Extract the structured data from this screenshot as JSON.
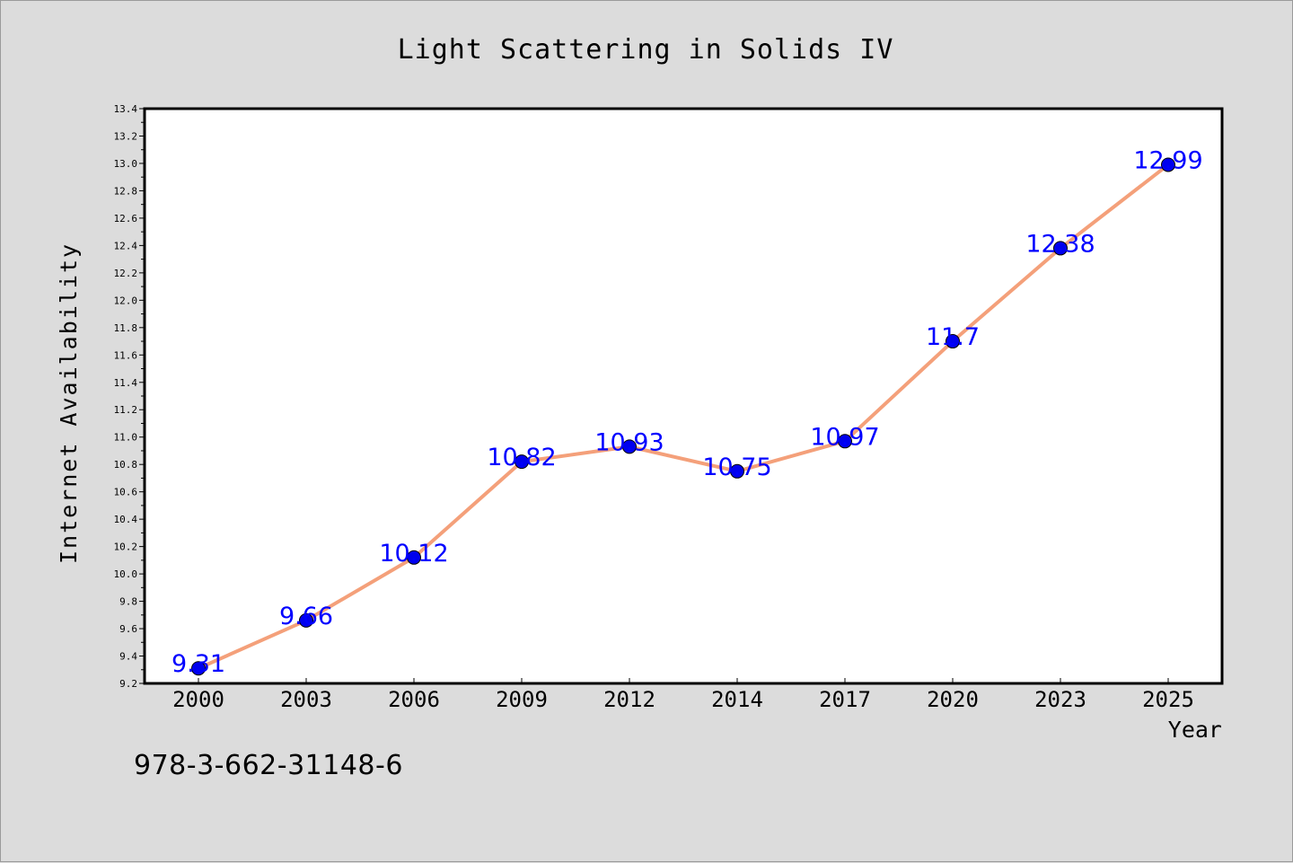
{
  "chart_data": {
    "type": "line",
    "title": "Light Scattering in Solids IV",
    "xlabel": "Year",
    "ylabel": "Internet Availability",
    "categories": [
      "2000",
      "2003",
      "2006",
      "2009",
      "2012",
      "2014",
      "2017",
      "2020",
      "2023",
      "2025"
    ],
    "series": [
      {
        "values": [
          9.31,
          9.66,
          10.12,
          10.82,
          10.93,
          10.75,
          10.97,
          11.7,
          12.38,
          12.99
        ],
        "labels": [
          "9.31",
          "9.66",
          "10.12",
          "10.82",
          "10.93",
          "10.75",
          "10.97",
          "11.7",
          "12.38",
          "12.99"
        ],
        "line_color": "#f4a07a",
        "marker_color": "#0000ee"
      }
    ],
    "ylim": [
      9.2,
      13.4
    ],
    "yticks": [
      "9.2",
      "9.4",
      "9.6",
      "9.8",
      "10.0",
      "10.2",
      "10.4",
      "10.6",
      "10.8",
      "11.0",
      "11.2",
      "11.4",
      "11.6",
      "11.8",
      "12.0",
      "12.2",
      "12.4",
      "12.6",
      "12.8",
      "13.0",
      "13.2",
      "13.4"
    ],
    "grid": false,
    "legend": "none"
  },
  "footer": {
    "isbn": "978-3-662-31148-6"
  },
  "colors": {
    "background": "#dcdcdc",
    "plot_background": "#ffffff",
    "data_label": "#0000ff"
  }
}
